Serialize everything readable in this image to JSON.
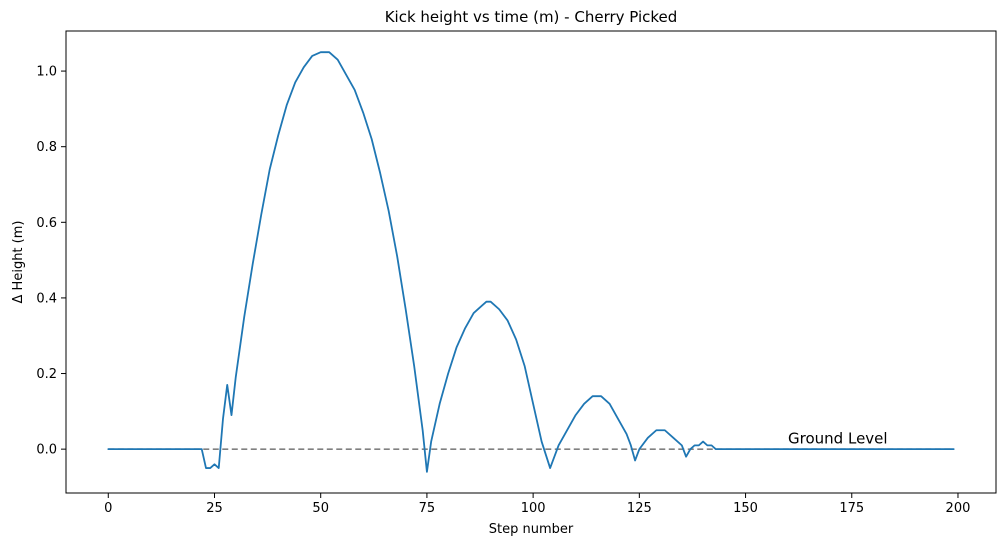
{
  "chart_data": {
    "type": "line",
    "title": "Kick height vs time (m) - Cherry Picked",
    "xlabel": "Step number",
    "ylabel": "Δ Height (m)",
    "xlim": [
      -9.95,
      208.95
    ],
    "ylim": [
      -0.116,
      1.106
    ],
    "x_ticks": [
      0,
      25,
      50,
      75,
      100,
      125,
      150,
      175,
      200
    ],
    "y_ticks": [
      0.0,
      0.2,
      0.4,
      0.6,
      0.8,
      1.0
    ],
    "x_tick_labels": [
      "0",
      "25",
      "50",
      "75",
      "100",
      "125",
      "150",
      "175",
      "200"
    ],
    "y_tick_labels": [
      "0.0",
      "0.2",
      "0.4",
      "0.6",
      "0.8",
      "1.0"
    ],
    "grid": false,
    "colors": {
      "series": "#1f77b4",
      "ground": "#808080"
    },
    "ground_level": {
      "y": 0,
      "x_range": [
        0,
        199
      ],
      "style": "dashed",
      "label": "Ground Level",
      "label_x": 160,
      "label_y": 0.015
    },
    "series": [
      {
        "x": [
          0,
          5,
          10,
          15,
          20,
          22,
          23,
          24,
          25,
          26,
          27,
          28,
          29,
          30,
          32,
          34,
          36,
          38,
          40,
          42,
          44,
          46,
          48,
          50,
          52,
          54,
          56,
          58,
          60,
          62,
          64,
          66,
          68,
          70,
          72,
          74,
          75,
          76,
          78,
          80,
          82,
          84,
          86,
          88,
          89,
          90,
          92,
          94,
          96,
          98,
          100,
          102,
          104,
          105,
          106,
          108,
          110,
          112,
          114,
          116,
          118,
          120,
          122,
          123,
          124,
          125,
          127,
          129,
          131,
          133,
          135,
          136,
          137,
          138,
          139,
          140,
          141,
          142,
          143,
          145,
          150,
          160,
          170,
          180,
          190,
          199
        ],
        "values": [
          0,
          0,
          0,
          0,
          0,
          0,
          -0.05,
          -0.05,
          -0.04,
          -0.05,
          0.08,
          0.17,
          0.09,
          0.19,
          0.35,
          0.49,
          0.62,
          0.74,
          0.83,
          0.91,
          0.97,
          1.01,
          1.04,
          1.05,
          1.05,
          1.03,
          0.99,
          0.95,
          0.89,
          0.82,
          0.73,
          0.63,
          0.51,
          0.37,
          0.22,
          0.05,
          -0.06,
          0.02,
          0.12,
          0.2,
          0.27,
          0.32,
          0.36,
          0.38,
          0.39,
          0.39,
          0.37,
          0.34,
          0.29,
          0.22,
          0.12,
          0.02,
          -0.05,
          -0.02,
          0.01,
          0.05,
          0.09,
          0.12,
          0.14,
          0.14,
          0.12,
          0.08,
          0.04,
          0.01,
          -0.03,
          0.0,
          0.03,
          0.05,
          0.05,
          0.03,
          0.01,
          -0.02,
          0.0,
          0.01,
          0.01,
          0.02,
          0.01,
          0.01,
          0,
          0,
          0,
          0,
          0,
          0,
          0,
          0
        ]
      }
    ]
  }
}
